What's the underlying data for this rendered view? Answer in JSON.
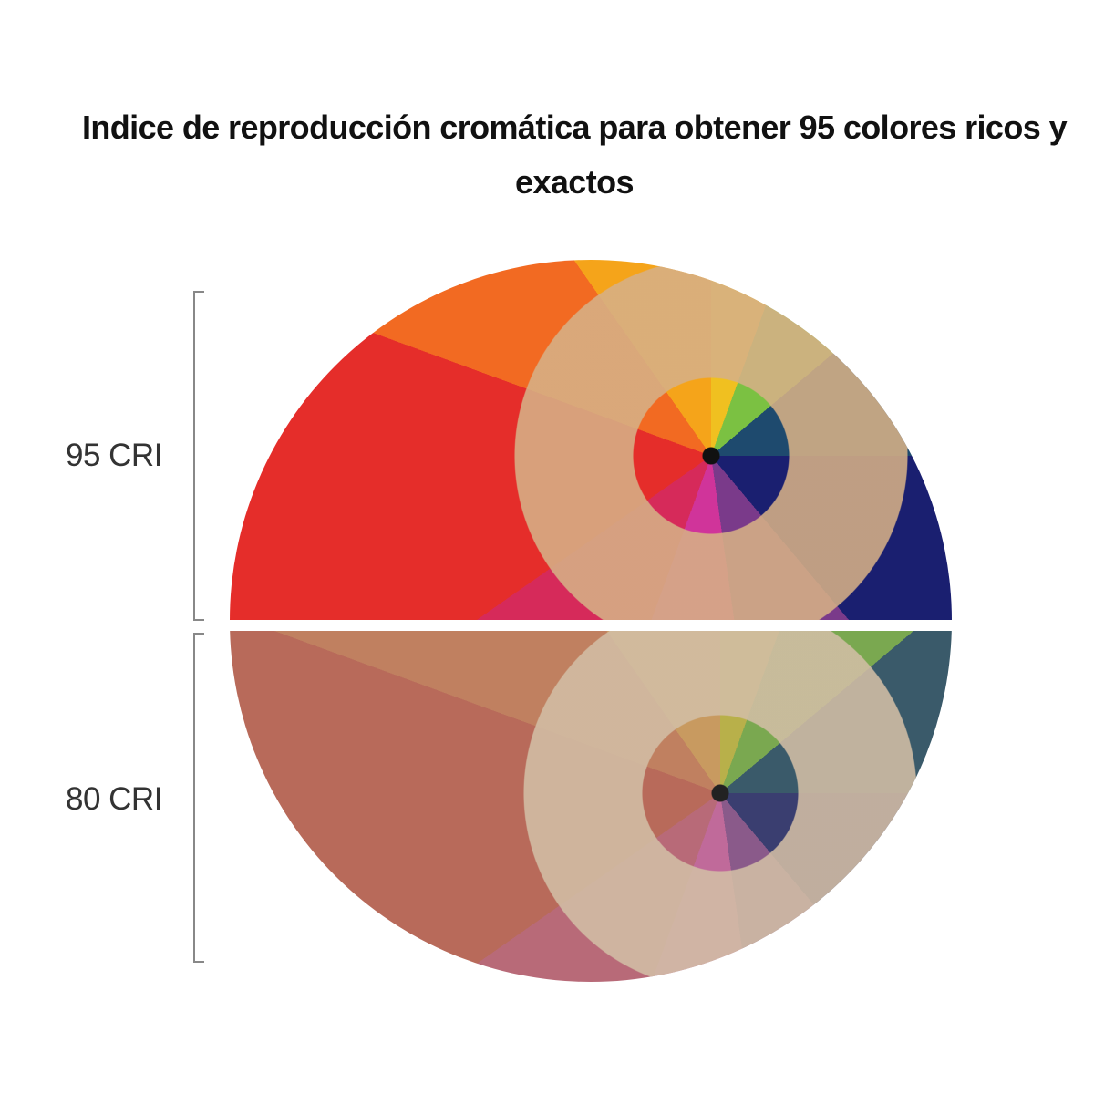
{
  "header": {
    "title": "Indice de reproducción cromática para obtener 95 colores ricos y exactos"
  },
  "comparison": [
    {
      "label": "95 CRI"
    },
    {
      "label": "80 CRI"
    }
  ]
}
